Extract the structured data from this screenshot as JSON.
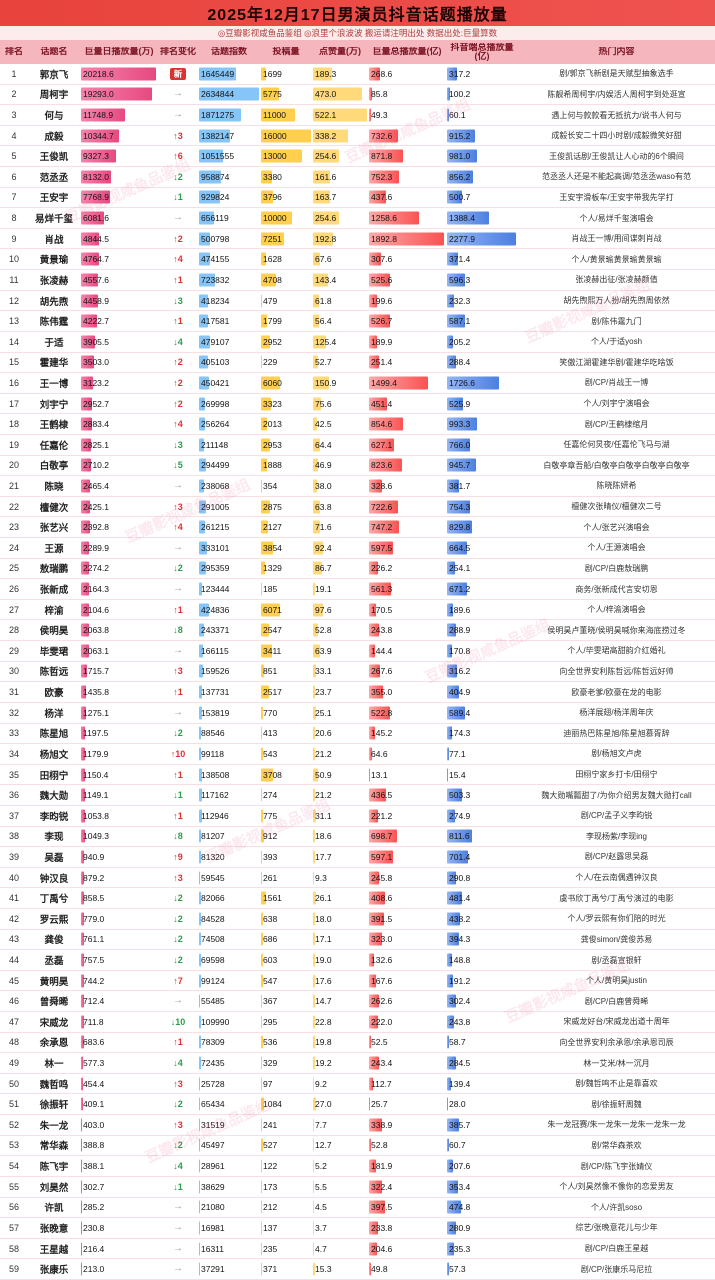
{
  "title": "2025年12月17日男演员抖音话题播放量",
  "subtitle": "◎豆瓣影视咸鱼品鉴组 ◎浪里个浪波波 搬运请注明出处 数据出处:巨量算数",
  "watermark": "豆瓣影视咸鱼品鉴组",
  "colors": {
    "header_red": "#e8433c",
    "daily_bar": "#e64980",
    "index_bar": "#85c5f7",
    "posts_bar": "#ffcf4d",
    "likes_bar": "#ffd97a",
    "total_bar": "#fa5252",
    "dtotal_bar": "#4c7fe0",
    "up": "#e03131",
    "down": "#2b9e4a"
  },
  "chart_data": {
    "type": "table",
    "title": "2025年12月17日男演员抖音话题播放量",
    "columns": [
      "排名",
      "话题名",
      "巨量日播放量(万)",
      "排名变化",
      "话题指数",
      "投稿量",
      "点赞量(万)",
      "巨量总播放量(亿)",
      "抖音端总播放量(亿)",
      "热门内容"
    ],
    "maxes": {
      "daily": 20218.6,
      "index": 2634844,
      "posts": 16000,
      "likes": 522.1,
      "total": 1892.8,
      "dtotal": 2277.9
    },
    "rows": [
      {
        "name": "郭京飞",
        "daily": "20218.6",
        "change": "新",
        "index": "1645449",
        "posts": "1699",
        "likes": "189.3",
        "total": "268.6",
        "dtotal": "317.2",
        "hot": "剧/郭京飞新剧是天赋型抽象选手"
      },
      {
        "name": "周柯宇",
        "daily": "19293.0",
        "change": "→",
        "index": "2634844",
        "posts": "5775",
        "likes": "473.0",
        "total": "85.8",
        "dtotal": "100.2",
        "hot": "陈靓希周柯宇/内娱活人周柯宇到处逛宣"
      },
      {
        "name": "何与",
        "daily": "11748.9",
        "change": "→",
        "index": "1871275",
        "posts": "11000",
        "likes": "522.1",
        "total": "49.3",
        "dtotal": "60.1",
        "hot": "遇上何与款款看无抵抗力/说书人何与"
      },
      {
        "name": "成毅",
        "daily": "10344.7",
        "change": "↑3",
        "index": "1382147",
        "posts": "16000",
        "likes": "338.2",
        "total": "732.6",
        "dtotal": "915.2",
        "hot": "成毅长安二十四小时剧/成毅微笑好甜"
      },
      {
        "name": "王俊凯",
        "daily": "9327.3",
        "change": "↑6",
        "index": "1051555",
        "posts": "13000",
        "likes": "254.6",
        "total": "871.8",
        "dtotal": "981.0",
        "hot": "王俊凯话剧/王俊凯让人心动的6个瞬间"
      },
      {
        "name": "范丞丞",
        "daily": "8132.0",
        "change": "↓2",
        "index": "958874",
        "posts": "3380",
        "likes": "161.6",
        "total": "752.3",
        "dtotal": "856.2",
        "hot": "范丞丞人还是不能起高调/范丞丞waso有范"
      },
      {
        "name": "王安宇",
        "daily": "7768.9",
        "change": "↓1",
        "index": "929824",
        "posts": "3796",
        "likes": "163.7",
        "total": "437.6",
        "dtotal": "500.7",
        "hot": "王安宇滑板车/王安宇带我先学打"
      },
      {
        "name": "易烊千玺",
        "daily": "6081.6",
        "change": "→",
        "index": "656119",
        "posts": "10000",
        "likes": "254.6",
        "total": "1258.6",
        "dtotal": "1388.4",
        "hot": "个人/易烊千玺演唱会"
      },
      {
        "name": "肖战",
        "daily": "4844.5",
        "change": "↑2",
        "index": "500798",
        "posts": "7251",
        "likes": "192.8",
        "total": "1892.8",
        "dtotal": "2277.9",
        "hot": "肖战王一博/用间谍刺肖战"
      },
      {
        "name": "黄景瑜",
        "daily": "4764.7",
        "change": "↑4",
        "index": "474155",
        "posts": "1628",
        "likes": "67.6",
        "total": "307.6",
        "dtotal": "371.4",
        "hot": "个人/黄景瑜黄景瑜黄景瑜"
      },
      {
        "name": "张凌赫",
        "daily": "4557.6",
        "change": "↑1",
        "index": "723832",
        "posts": "4708",
        "likes": "143.4",
        "total": "525.6",
        "dtotal": "596.3",
        "hot": "张凌赫出征/张凌赫颜值"
      },
      {
        "name": "胡先煦",
        "daily": "4458.9",
        "change": "↓3",
        "index": "418234",
        "posts": "479",
        "likes": "61.8",
        "total": "199.6",
        "dtotal": "232.3",
        "hot": "胡先煦熙万人扮/胡先煦周依然"
      },
      {
        "name": "陈伟霆",
        "daily": "4222.7",
        "change": "↑1",
        "index": "417581",
        "posts": "1799",
        "likes": "56.4",
        "total": "526.7",
        "dtotal": "587.1",
        "hot": "剧/陈伟霆九门"
      },
      {
        "name": "于适",
        "daily": "3905.5",
        "change": "↓4",
        "index": "479107",
        "posts": "2952",
        "likes": "125.4",
        "total": "189.9",
        "dtotal": "205.2",
        "hot": "个人/于适yosh"
      },
      {
        "name": "霍建华",
        "daily": "3503.0",
        "change": "↑2",
        "index": "405103",
        "posts": "229",
        "likes": "52.7",
        "total": "251.4",
        "dtotal": "288.4",
        "hot": "笑傲江湖霍建华剧/霍建华吃啥饭"
      },
      {
        "name": "王一博",
        "daily": "3123.2",
        "change": "↑2",
        "index": "450421",
        "posts": "6060",
        "likes": "150.9",
        "total": "1499.4",
        "dtotal": "1726.6",
        "hot": "剧/CP/肖战王一博"
      },
      {
        "name": "刘宇宁",
        "daily": "2952.7",
        "change": "↑2",
        "index": "269998",
        "posts": "3323",
        "likes": "75.6",
        "total": "451.4",
        "dtotal": "525.9",
        "hot": "个人/刘宇宁演唱会"
      },
      {
        "name": "王鹤棣",
        "daily": "2883.4",
        "change": "↑4",
        "index": "256264",
        "posts": "2013",
        "likes": "42.5",
        "total": "854.6",
        "dtotal": "993.3",
        "hot": "剧/CP/王鹤棣绾月"
      },
      {
        "name": "任嘉伦",
        "daily": "2825.1",
        "change": "↓3",
        "index": "211148",
        "posts": "2953",
        "likes": "64.4",
        "total": "627.1",
        "dtotal": "766.0",
        "hot": "任嘉伦何炅夜/任嘉伦飞马与湖"
      },
      {
        "name": "白敬亭",
        "daily": "2710.2",
        "change": "↓5",
        "index": "294499",
        "posts": "1888",
        "likes": "46.9",
        "total": "823.6",
        "dtotal": "945.7",
        "hot": "白敬亭章吾船/白敬亭白敬亭白敬亭白敬亭"
      },
      {
        "name": "陈晓",
        "daily": "2465.4",
        "change": "→",
        "index": "238068",
        "posts": "354",
        "likes": "38.0",
        "total": "328.6",
        "dtotal": "381.7",
        "hot": "陈晓陈妍希"
      },
      {
        "name": "檀健次",
        "daily": "2425.1",
        "change": "↑3",
        "index": "291005",
        "posts": "2875",
        "likes": "63.8",
        "total": "722.6",
        "dtotal": "754.3",
        "hot": "檀健次张晴仪/檀健次二号"
      },
      {
        "name": "张艺兴",
        "daily": "2392.8",
        "change": "↑4",
        "index": "261215",
        "posts": "2127",
        "likes": "71.6",
        "total": "747.2",
        "dtotal": "829.8",
        "hot": "个人/张艺兴演唱会"
      },
      {
        "name": "王源",
        "daily": "2289.9",
        "change": "→",
        "index": "333101",
        "posts": "3854",
        "likes": "92.4",
        "total": "597.5",
        "dtotal": "664.5",
        "hot": "个人/王源演唱会"
      },
      {
        "name": "敖瑞鹏",
        "daily": "2274.2",
        "change": "↓2",
        "index": "295359",
        "posts": "1329",
        "likes": "86.7",
        "total": "226.2",
        "dtotal": "254.1",
        "hot": "剧/CP/白鹿敖瑞鹏"
      },
      {
        "name": "张新成",
        "daily": "2164.3",
        "change": "→",
        "index": "123444",
        "posts": "185",
        "likes": "19.1",
        "total": "561.3",
        "dtotal": "671.2",
        "hot": "商务/张新成代言安切恩"
      },
      {
        "name": "梓渝",
        "daily": "2104.6",
        "change": "↑1",
        "index": "424836",
        "posts": "6071",
        "likes": "97.6",
        "total": "170.5",
        "dtotal": "189.6",
        "hot": "个人/梓渝演唱会"
      },
      {
        "name": "侯明昊",
        "daily": "2063.8",
        "change": "↓8",
        "index": "243371",
        "posts": "2547",
        "likes": "52.8",
        "total": "243.8",
        "dtotal": "288.9",
        "hot": "侯明昊卢董晓/侯明昊喊你来海底捞过冬"
      },
      {
        "name": "毕雯珺",
        "daily": "2063.1",
        "change": "→",
        "index": "166115",
        "posts": "3411",
        "likes": "63.9",
        "total": "144.4",
        "dtotal": "170.8",
        "hot": "个人/毕雯珺高甜韵介红婚礼"
      },
      {
        "name": "陈哲远",
        "daily": "1715.7",
        "change": "↑3",
        "index": "159526",
        "posts": "851",
        "likes": "33.1",
        "total": "267.6",
        "dtotal": "316.2",
        "hot": "向全世界安利陈哲远/陈哲远好帅"
      },
      {
        "name": "欧豪",
        "daily": "1435.8",
        "change": "↑1",
        "index": "137731",
        "posts": "2517",
        "likes": "23.7",
        "total": "355.0",
        "dtotal": "404.9",
        "hot": "欧豪老爹/欧豪在龙的电影"
      },
      {
        "name": "杨洋",
        "daily": "1275.1",
        "change": "→",
        "index": "153819",
        "posts": "770",
        "likes": "25.1",
        "total": "522.8",
        "dtotal": "589.4",
        "hot": "杨洋展翅/杨洋周年庆"
      },
      {
        "name": "陈星旭",
        "daily": "1197.5",
        "change": "↓2",
        "index": "88546",
        "posts": "413",
        "likes": "20.6",
        "total": "145.2",
        "dtotal": "174.3",
        "hot": "迪丽热巴陈星旭/陈星旭慕胥辞"
      },
      {
        "name": "杨旭文",
        "daily": "1179.9",
        "change": "↑10",
        "index": "99118",
        "posts": "543",
        "likes": "21.2",
        "total": "64.6",
        "dtotal": "77.1",
        "hot": "剧/杨旭文卢虎"
      },
      {
        "name": "田栩宁",
        "daily": "1150.4",
        "change": "↑1",
        "index": "138508",
        "posts": "3708",
        "likes": "50.9",
        "total": "13.1",
        "dtotal": "15.4",
        "hot": "田栩宁家乡打卡/田栩宁"
      },
      {
        "name": "魏大勋",
        "daily": "1149.1",
        "change": "↓1",
        "index": "117162",
        "posts": "274",
        "likes": "21.2",
        "total": "436.5",
        "dtotal": "503.3",
        "hot": "魏大勋嘴瓢甜了/为你介绍男友魏大勋打call"
      },
      {
        "name": "李昀锐",
        "daily": "1053.8",
        "change": "↑1",
        "index": "112946",
        "posts": "775",
        "likes": "31.1",
        "total": "221.2",
        "dtotal": "274.9",
        "hot": "剧/CP/孟子义李昀锐"
      },
      {
        "name": "李现",
        "daily": "1049.3",
        "change": "↓8",
        "index": "81207",
        "posts": "912",
        "likes": "18.6",
        "total": "698.7",
        "dtotal": "811.6",
        "hot": "李现杨紫/李现ing"
      },
      {
        "name": "吴磊",
        "daily": "940.9",
        "change": "↑9",
        "index": "81320",
        "posts": "393",
        "likes": "17.7",
        "total": "597.1",
        "dtotal": "701.4",
        "hot": "剧/CP/赵露思吴磊"
      },
      {
        "name": "钟汉良",
        "daily": "879.2",
        "change": "↑3",
        "index": "59545",
        "posts": "261",
        "likes": "9.3",
        "total": "245.8",
        "dtotal": "290.8",
        "hot": "个人/在云南偶遇钟汉良"
      },
      {
        "name": "丁禹兮",
        "daily": "858.5",
        "change": "↓2",
        "index": "82066",
        "posts": "1561",
        "likes": "26.1",
        "total": "408.6",
        "dtotal": "481.4",
        "hot": "虞书欣丁禹兮/丁禹兮演过的电影"
      },
      {
        "name": "罗云熙",
        "daily": "779.0",
        "change": "↓2",
        "index": "84528",
        "posts": "638",
        "likes": "18.0",
        "total": "391.5",
        "dtotal": "438.2",
        "hot": "个人/罗云熙有你们陪的时光"
      },
      {
        "name": "龚俊",
        "daily": "761.1",
        "change": "↓2",
        "index": "74508",
        "posts": "686",
        "likes": "17.1",
        "total": "323.0",
        "dtotal": "394.3",
        "hot": "龚俊simon/龚俊苏易"
      },
      {
        "name": "丞磊",
        "daily": "757.5",
        "change": "↓2",
        "index": "69598",
        "posts": "603",
        "likes": "19.0",
        "total": "132.6",
        "dtotal": "148.8",
        "hot": "剧/丞磊宣银轩"
      },
      {
        "name": "黄明昊",
        "daily": "744.2",
        "change": "↑7",
        "index": "99124",
        "posts": "547",
        "likes": "17.6",
        "total": "167.6",
        "dtotal": "191.2",
        "hot": "个人/黄明昊justin"
      },
      {
        "name": "曾舜晞",
        "daily": "712.4",
        "change": "→",
        "index": "55485",
        "posts": "367",
        "likes": "14.7",
        "total": "262.6",
        "dtotal": "302.4",
        "hot": "剧/CP/白鹿曾舜晞"
      },
      {
        "name": "宋威龙",
        "daily": "711.8",
        "change": "↓10",
        "index": "109990",
        "posts": "295",
        "likes": "22.8",
        "total": "222.0",
        "dtotal": "243.8",
        "hot": "宋威龙好台/宋威龙出道十周年"
      },
      {
        "name": "余承恩",
        "daily": "683.6",
        "change": "↑1",
        "index": "78309",
        "posts": "536",
        "likes": "19.8",
        "total": "52.5",
        "dtotal": "58.7",
        "hot": "向全世界安利余承恩/余承恩司辰"
      },
      {
        "name": "林一",
        "daily": "577.3",
        "change": "↓4",
        "index": "72435",
        "posts": "329",
        "likes": "19.2",
        "total": "243.4",
        "dtotal": "284.5",
        "hot": "林一艾米/林一沉月"
      },
      {
        "name": "魏哲鸣",
        "daily": "454.4",
        "change": "↑3",
        "index": "25728",
        "posts": "97",
        "likes": "9.2",
        "total": "112.7",
        "dtotal": "139.4",
        "hot": "剧/魏哲鸣不止是靠喜欢"
      },
      {
        "name": "徐振轩",
        "daily": "409.1",
        "change": "↓2",
        "index": "65434",
        "posts": "1084",
        "likes": "27.0",
        "total": "25.7",
        "dtotal": "28.0",
        "hot": "剧/徐振轩周魏"
      },
      {
        "name": "朱一龙",
        "daily": "403.0",
        "change": "↑3",
        "index": "31519",
        "posts": "241",
        "likes": "7.7",
        "total": "338.9",
        "dtotal": "385.7",
        "hot": "朱一龙冠赛/朱一龙朱一龙朱一龙朱一龙"
      },
      {
        "name": "常华森",
        "daily": "388.8",
        "change": "↓2",
        "index": "45497",
        "posts": "527",
        "likes": "12.7",
        "total": "52.8",
        "dtotal": "60.7",
        "hot": "剧/常华森茶欢"
      },
      {
        "name": "陈飞宇",
        "daily": "388.1",
        "change": "↓4",
        "index": "28961",
        "posts": "122",
        "likes": "5.2",
        "total": "181.9",
        "dtotal": "207.6",
        "hot": "剧/CP/陈飞宇张婧仪"
      },
      {
        "name": "刘昊然",
        "daily": "302.7",
        "change": "↓1",
        "index": "38629",
        "posts": "173",
        "likes": "5.5",
        "total": "322.4",
        "dtotal": "353.4",
        "hot": "个人/刘昊然像不像你的恋爱男友"
      },
      {
        "name": "许凯",
        "daily": "285.2",
        "change": "→",
        "index": "21080",
        "posts": "212",
        "likes": "4.5",
        "total": "397.5",
        "dtotal": "474.8",
        "hot": "个人/许凯soso"
      },
      {
        "name": "张晚意",
        "daily": "230.8",
        "change": "→",
        "index": "16981",
        "posts": "137",
        "likes": "3.7",
        "total": "233.8",
        "dtotal": "280.9",
        "hot": "综艺/张晚意花儿与少年"
      },
      {
        "name": "王星越",
        "daily": "216.4",
        "change": "→",
        "index": "16311",
        "posts": "235",
        "likes": "4.7",
        "total": "204.6",
        "dtotal": "235.3",
        "hot": "剧/CP/白鹿王星越"
      },
      {
        "name": "张康乐",
        "daily": "213.0",
        "change": "→",
        "index": "37291",
        "posts": "371",
        "likes": "15.3",
        "total": "49.8",
        "dtotal": "57.3",
        "hot": "剧/CP/张康乐马尼拉"
      }
    ]
  }
}
